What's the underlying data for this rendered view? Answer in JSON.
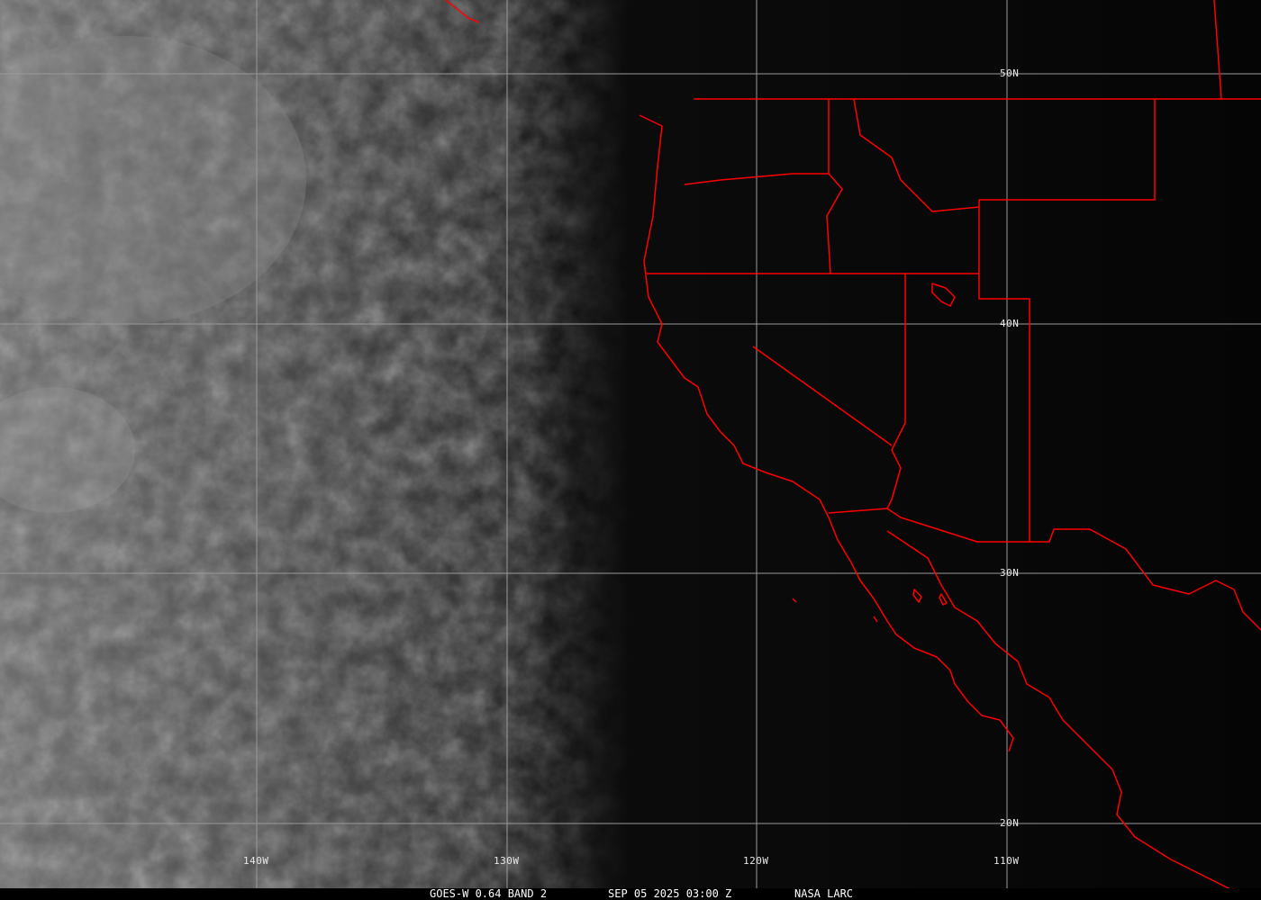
{
  "caption": {
    "satellite": "GOES-W 0.64 BAND 2",
    "datetime": "SEP 05 2025 03:00 Z",
    "source": "NASA LARC"
  },
  "grid": {
    "lat_labels": [
      "50N",
      "40N",
      "30N",
      "20N"
    ],
    "lon_labels": [
      "140W",
      "130W",
      "120W",
      "110W"
    ]
  },
  "colors": {
    "borders": "#ff0000",
    "grid": "#9a9a9a",
    "background": "#000000"
  }
}
